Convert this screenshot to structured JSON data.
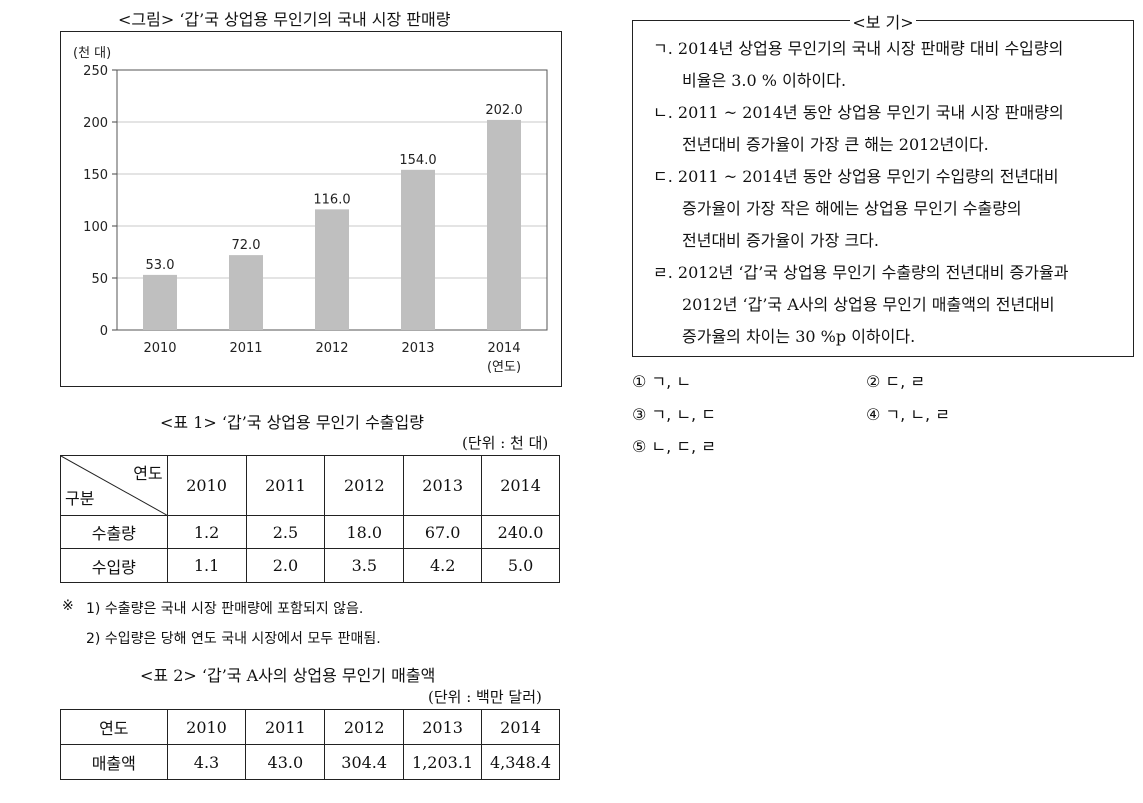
{
  "figure": {
    "title": "<그림> ‘갑’국 상업용 무인기의 국내 시장 판매량"
  },
  "chart_data": {
    "type": "bar",
    "title": "<그림> ‘갑’국 상업용 무인기의 국내 시장 판매량",
    "ylabel": "(천 대)",
    "xlabel": "(연도)",
    "categories": [
      "2010",
      "2011",
      "2012",
      "2013",
      "2014"
    ],
    "values": [
      53.0,
      72.0,
      116.0,
      154.0,
      202.0
    ],
    "value_labels": [
      "53.0",
      "72.0",
      "116.0",
      "154.0",
      "202.0"
    ],
    "yticks": [
      "0",
      "50",
      "100",
      "150",
      "200",
      "250"
    ],
    "ylim": [
      0,
      250
    ],
    "grid": true,
    "bar_color": "#bfbfbf"
  },
  "table1": {
    "title": "<표 1> ‘갑’국 상업용 무인기 수출입량",
    "unit": "(단위 : 천 대)",
    "corner_top": "연도",
    "corner_bottom": "구분",
    "years": [
      "2010",
      "2011",
      "2012",
      "2013",
      "2014"
    ],
    "rows": [
      {
        "label": "수출량",
        "values": [
          "1.2",
          "2.5",
          "18.0",
          "67.0",
          "240.0"
        ]
      },
      {
        "label": "수입량",
        "values": [
          "1.1",
          "2.0",
          "3.5",
          "4.2",
          "5.0"
        ]
      }
    ]
  },
  "notes": {
    "mark": "※",
    "n1": "1) 수출량은 국내 시장 판매량에 포함되지 않음.",
    "n2": "2) 수입량은 당해 연도 국내 시장에서 모두 판매됨."
  },
  "table2": {
    "title": "<표 2> ‘갑’국 A사의 상업용 무인기 매출액",
    "unit": "(단위 : 백만 달러)",
    "header_label": "연도",
    "years": [
      "2010",
      "2011",
      "2012",
      "2013",
      "2014"
    ],
    "row_label": "매출액",
    "values": [
      "4.3",
      "43.0",
      "304.4",
      "1,203.1",
      "4,348.4"
    ]
  },
  "bogi": {
    "title": "<보 기>",
    "lines": [
      "ㄱ. 2014년 상업용 무인기의 국내 시장 판매량 대비 수입량의",
      "비율은 3.0 % 이하이다.",
      "ㄴ. 2011 ~ 2014년 동안 상업용 무인기 국내 시장 판매량의",
      "전년대비 증가율이 가장 큰 해는 2012년이다.",
      "ㄷ. 2011 ~ 2014년 동안 상업용 무인기 수입량의 전년대비",
      "증가율이 가장 작은 해에는 상업용 무인기 수출량의",
      "전년대비 증가율이 가장 크다.",
      "ㄹ. 2012년 ‘갑’국 상업용 무인기 수출량의 전년대비 증가율과",
      "2012년 ‘갑’국 A사의 상업용 무인기 매출액의 전년대비",
      "증가율의 차이는 30 %p 이하이다."
    ]
  },
  "choices": [
    "① ㄱ, ㄴ",
    "② ㄷ, ㄹ",
    "③ ㄱ, ㄴ, ㄷ",
    "④ ㄱ, ㄴ, ㄹ",
    "⑤ ㄴ, ㄷ, ㄹ"
  ]
}
